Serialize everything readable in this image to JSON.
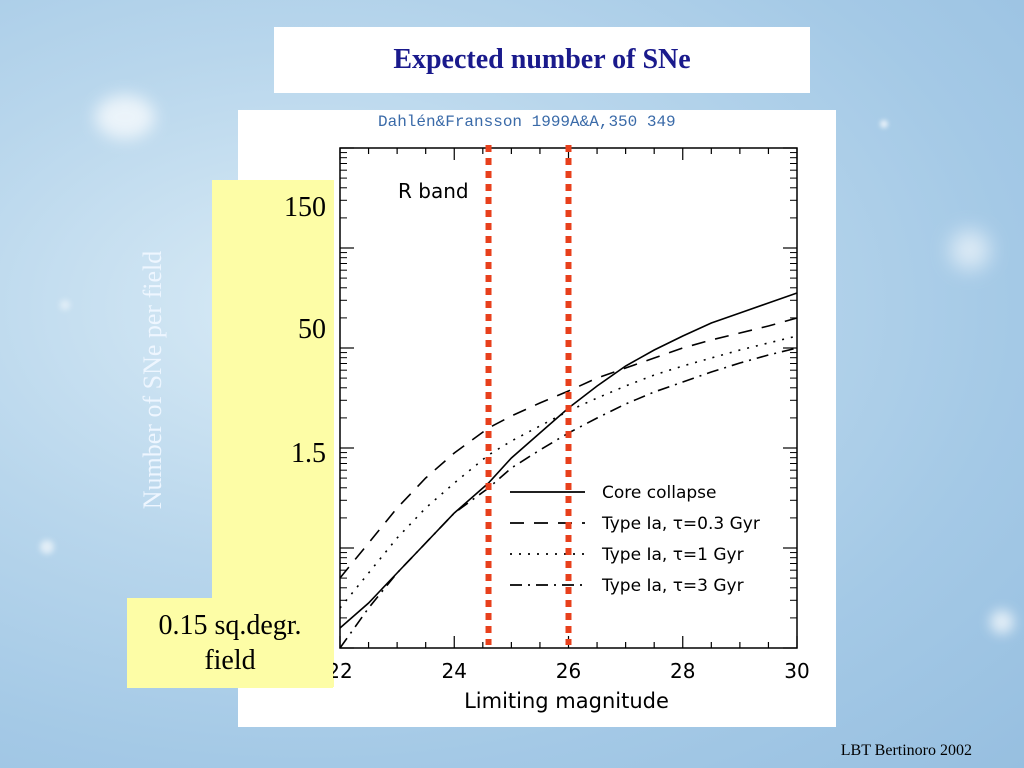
{
  "slide": {
    "title": "Expected number of SNe",
    "citation": "Dahlén&Fransson 1999A&A,350 349",
    "field_note": "0.15 sq.degr.\nfield",
    "footer": "LBT Bertinoro 2002",
    "ylabel": "Number of SNe per field",
    "yticks": [
      "150",
      "50",
      "1.5"
    ]
  },
  "colors": {
    "title": "#1a1a8c",
    "highlight": "#fdfda6",
    "marker_lines": "#e8401c",
    "background": "#a4c9e6"
  },
  "chart_data": {
    "type": "line",
    "xlabel": "Limiting magnitude",
    "annotation": "R band",
    "xlim": [
      22,
      30
    ],
    "xticks": [
      22,
      24,
      26,
      28,
      30
    ],
    "ylim": [
      0,
      5
    ],
    "yscale": "log",
    "marker_lines_x": [
      24.6,
      26.0
    ],
    "legend_position": "lower-right",
    "series": [
      {
        "name": "Core collapse",
        "style": "solid",
        "x": [
          22.0,
          22.5,
          23.0,
          23.5,
          24.0,
          24.6,
          25.0,
          25.5,
          26.0,
          26.5,
          27.0,
          27.5,
          28.0,
          28.5,
          29.0,
          29.5,
          30.0
        ],
        "y": [
          0.2,
          0.45,
          0.75,
          1.05,
          1.35,
          1.65,
          1.9,
          2.15,
          2.4,
          2.62,
          2.82,
          2.98,
          3.12,
          3.25,
          3.35,
          3.45,
          3.55
        ]
      },
      {
        "name": "Type Ia, τ=0.3 Gyr",
        "style": "long-dash",
        "x": [
          22.0,
          22.5,
          23.0,
          23.5,
          24.0,
          24.6,
          25.0,
          25.5,
          26.0,
          26.5,
          27.0,
          27.5,
          28.0,
          28.5,
          29.0,
          29.5,
          30.0
        ],
        "y": [
          0.7,
          1.05,
          1.4,
          1.7,
          1.95,
          2.2,
          2.32,
          2.45,
          2.57,
          2.7,
          2.8,
          2.9,
          3.0,
          3.08,
          3.15,
          3.22,
          3.3
        ]
      },
      {
        "name": "Type Ia, τ=1 Gyr",
        "style": "dotted",
        "x": [
          22.0,
          22.5,
          23.0,
          23.5,
          24.0,
          24.6,
          25.0,
          25.5,
          26.0,
          26.5,
          27.0,
          27.5,
          28.0,
          28.5,
          29.0,
          29.5,
          30.0
        ],
        "y": [
          0.4,
          0.75,
          1.1,
          1.4,
          1.65,
          1.93,
          2.07,
          2.22,
          2.37,
          2.5,
          2.62,
          2.73,
          2.82,
          2.9,
          2.98,
          3.05,
          3.12
        ]
      },
      {
        "name": "Type Ia, τ=3 Gyr",
        "style": "dash-dot",
        "x": [
          22.0,
          22.5,
          23.0,
          23.5,
          24.0,
          24.6,
          25.0,
          25.5,
          26.0,
          26.5,
          27.0,
          27.5,
          28.0,
          28.5,
          29.0,
          29.5,
          30.0
        ],
        "y": [
          0.0,
          0.4,
          0.75,
          1.05,
          1.35,
          1.6,
          1.8,
          1.98,
          2.15,
          2.3,
          2.44,
          2.56,
          2.66,
          2.76,
          2.85,
          2.93,
          3.0
        ]
      }
    ]
  }
}
